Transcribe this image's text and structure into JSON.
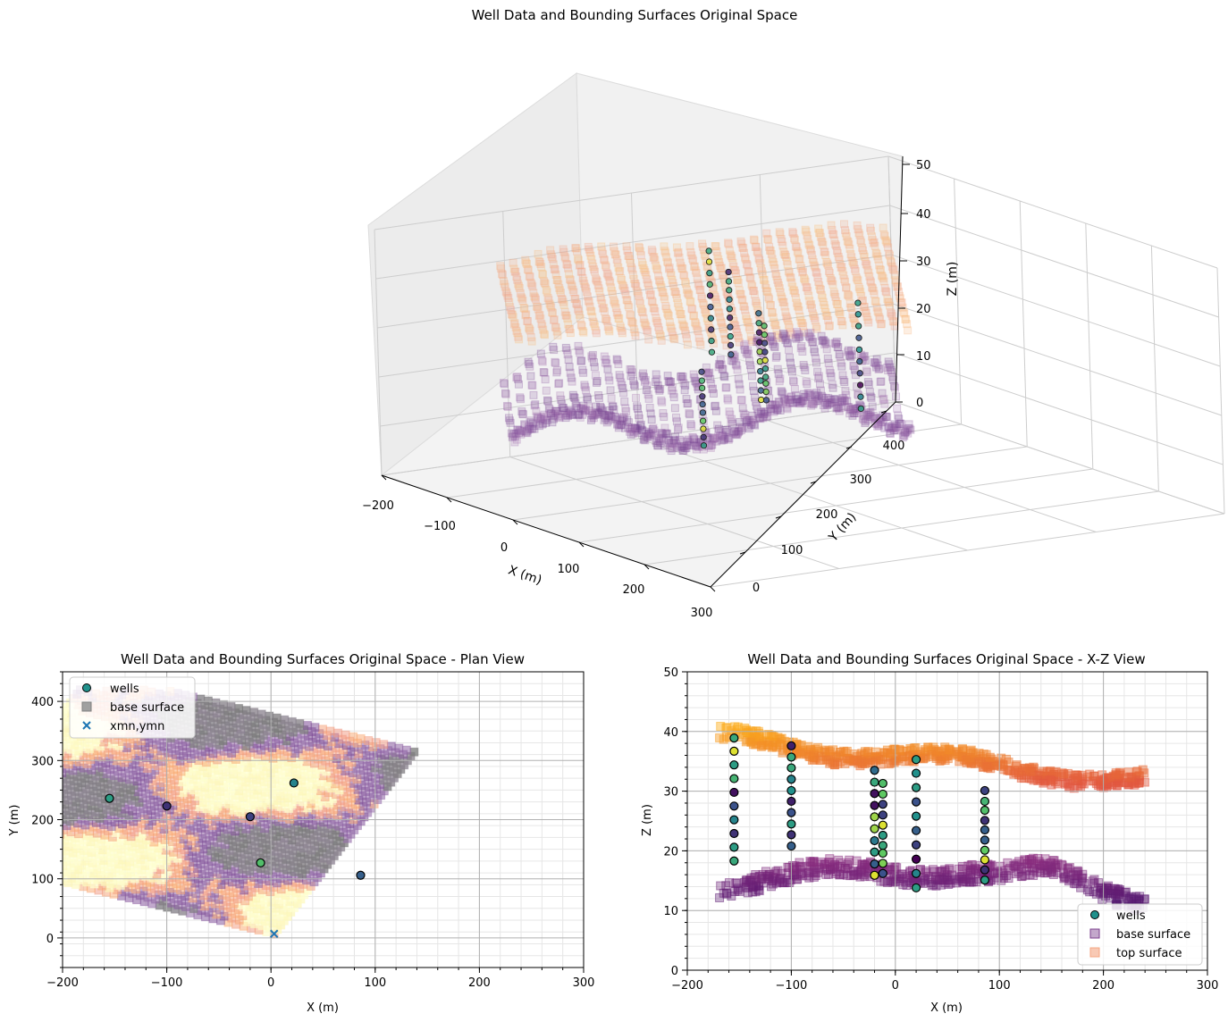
{
  "figure_title": "Well Data and Bounding Surfaces Original Space",
  "colors": {
    "wells_legend": "#21918c",
    "base_surface": "#7b3f8c",
    "top_surface": "#f4a582",
    "xmn_marker": "#1f77b4",
    "grid": "#b0b0b0"
  },
  "chart_data": [
    {
      "id": "3d",
      "type": "scatter",
      "title": "Well Data and Bounding Surfaces Original Space",
      "xlabel": "X (m)",
      "ylabel": "Y (m)",
      "zlabel": "Z (m)",
      "xlim": [
        -200,
        300
      ],
      "ylim": [
        0,
        400
      ],
      "zlim": [
        0,
        50
      ],
      "xticks": [
        "−200",
        "−100",
        "0",
        "100",
        "200",
        "300"
      ],
      "yticks": [
        "0",
        "100",
        "200",
        "300",
        "400"
      ],
      "zticks": [
        "0",
        "10",
        "20",
        "30",
        "40",
        "50"
      ],
      "series": [
        {
          "name": "wells",
          "marker": "circle"
        },
        {
          "name": "base surface",
          "marker": "square"
        },
        {
          "name": "top surface",
          "marker": "square"
        }
      ]
    },
    {
      "id": "plan",
      "type": "scatter",
      "title": "Well Data and Bounding Surfaces Original Space - Plan View",
      "xlabel": "X (m)",
      "ylabel": "Y (m)",
      "xlim": [
        -200,
        300
      ],
      "ylim": [
        -50,
        450
      ],
      "xticks": [
        -200,
        -100,
        0,
        100,
        200,
        300
      ],
      "yticks": [
        0,
        100,
        200,
        300,
        400
      ],
      "grid": true,
      "legend": [
        "wells",
        "base surface",
        "xmn,ymn"
      ],
      "legend_loc": "upper left",
      "wells": [
        {
          "x": -155,
          "y": 236,
          "value": 0.55
        },
        {
          "x": -100,
          "y": 223,
          "value": 0.15
        },
        {
          "x": -20,
          "y": 205,
          "value": 0.2
        },
        {
          "x": 22,
          "y": 262,
          "value": 0.45
        },
        {
          "x": -10,
          "y": 127,
          "value": 0.7
        },
        {
          "x": 86,
          "y": 106,
          "value": 0.3
        }
      ],
      "xmn_ymn": {
        "x": 3,
        "y": 7
      }
    },
    {
      "id": "xz",
      "type": "scatter",
      "title": "Well Data and Bounding Surfaces Original Space - X-Z View",
      "xlabel": "X (m)",
      "ylabel": "Z (m)",
      "xlim": [
        -200,
        300
      ],
      "ylim": [
        0,
        50
      ],
      "xticks": [
        -200,
        -100,
        0,
        100,
        200,
        300
      ],
      "yticks": [
        0,
        10,
        20,
        30,
        40,
        50
      ],
      "grid": true,
      "legend": [
        "wells",
        "base surface",
        "top surface"
      ],
      "legend_loc": "lower right",
      "well_columns": [
        {
          "x": -155,
          "z": [
            38.9,
            36.7,
            34.4,
            32.1,
            29.8,
            27.5,
            25.2,
            22.9,
            20.6,
            18.3
          ],
          "v": [
            0.6,
            0.95,
            0.55,
            0.65,
            0.05,
            0.25,
            0.45,
            0.15,
            0.55,
            0.6
          ]
        },
        {
          "x": -100,
          "z": [
            37.6,
            35.7,
            33.9,
            32.0,
            30.1,
            28.3,
            26.4,
            24.5,
            22.7,
            20.8
          ],
          "v": [
            0.1,
            0.6,
            0.6,
            0.45,
            0.5,
            0.1,
            0.25,
            0.55,
            0.15,
            0.3
          ]
        },
        {
          "x": -20,
          "z": [
            33.5,
            31.5,
            29.6,
            27.6,
            25.7,
            23.7,
            21.7,
            19.8,
            17.8,
            15.9
          ],
          "v": [
            0.35,
            0.6,
            0.05,
            0.05,
            0.85,
            0.85,
            0.4,
            0.55,
            0.3,
            0.95
          ]
        },
        {
          "x": -12,
          "z": [
            31.3,
            29.5,
            27.8,
            26.0,
            24.3,
            22.6,
            20.9,
            19.6,
            17.9,
            16.2
          ],
          "v": [
            0.7,
            0.75,
            0.2,
            0.2,
            0.95,
            0.55,
            0.6,
            0.75,
            0.8,
            0.25
          ]
        },
        {
          "x": 20,
          "z": [
            35.3,
            33.0,
            30.6,
            28.2,
            25.8,
            23.4,
            21.0,
            18.6,
            16.2,
            13.8
          ],
          "v": [
            0.55,
            0.5,
            0.55,
            0.25,
            0.5,
            0.3,
            0.2,
            0.0,
            0.45,
            0.55
          ]
        },
        {
          "x": 86,
          "z": [
            30.1,
            28.3,
            26.8,
            25.1,
            23.5,
            21.8,
            20.1,
            18.5,
            16.8,
            15.1
          ],
          "v": [
            0.2,
            0.65,
            0.7,
            0.15,
            0.3,
            0.3,
            0.75,
            0.95,
            0.15,
            0.55
          ]
        }
      ]
    }
  ]
}
